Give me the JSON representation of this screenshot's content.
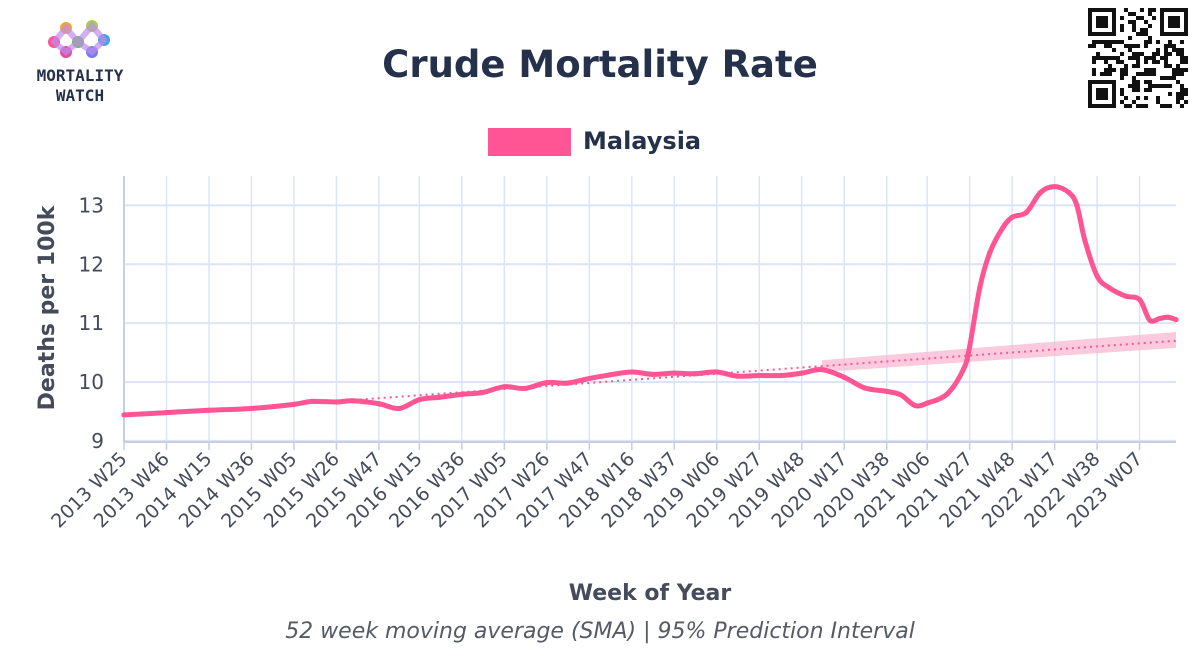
{
  "logo": {
    "line1": "MORTALITY",
    "line2": "WATCH"
  },
  "chart_data": {
    "type": "line",
    "title": "Crude Mortality Rate",
    "subtitle": "52 week moving average (SMA) | 95% Prediction Interval",
    "xlabel": "Week of Year",
    "ylabel": "Deaths per 100k",
    "ylim": [
      8.98,
      13.5
    ],
    "yticks": [
      9,
      10,
      11,
      12,
      13
    ],
    "grid": true,
    "legend_position": "top-center",
    "colors": {
      "series": "#ff5595",
      "band": "#f9b8d0",
      "grid": "#dde4f5",
      "text": "#25304b"
    },
    "xticks": [
      "2013 W25",
      "2013 W46",
      "2014 W15",
      "2014 W36",
      "2015 W05",
      "2015 W26",
      "2015 W47",
      "2016 W15",
      "2016 W36",
      "2017 W05",
      "2017 W26",
      "2017 W47",
      "2018 W16",
      "2018 W37",
      "2019 W06",
      "2019 W27",
      "2019 W48",
      "2020 W17",
      "2020 W38",
      "2021 W06",
      "2021 W27",
      "2021 W48",
      "2022 W17",
      "2022 W38",
      "2023 W07"
    ],
    "series": [
      {
        "name": "Malaysia",
        "points": [
          [
            "2013 W25",
            9.44
          ],
          [
            "2013 W46",
            9.48
          ],
          [
            "2014 W15",
            9.52
          ],
          [
            "2014 W36",
            9.55
          ],
          [
            "2015 W05",
            9.62
          ],
          [
            "2015 W14",
            9.67
          ],
          [
            "2015 W26",
            9.66
          ],
          [
            "2015 W34",
            9.68
          ],
          [
            "2015 W47",
            9.63
          ],
          [
            "2016 W05",
            9.55
          ],
          [
            "2016 W15",
            9.7
          ],
          [
            "2016 W25",
            9.74
          ],
          [
            "2016 W36",
            9.79
          ],
          [
            "2016 W46",
            9.82
          ],
          [
            "2017 W05",
            9.92
          ],
          [
            "2017 W15",
            9.89
          ],
          [
            "2017 W26",
            9.99
          ],
          [
            "2017 W36",
            9.98
          ],
          [
            "2017 W47",
            10.06
          ],
          [
            "2018 W05",
            10.12
          ],
          [
            "2018 W16",
            10.17
          ],
          [
            "2018 W26",
            10.13
          ],
          [
            "2018 W37",
            10.15
          ],
          [
            "2018 W47",
            10.14
          ],
          [
            "2019 W06",
            10.17
          ],
          [
            "2019 W16",
            10.1
          ],
          [
            "2019 W27",
            10.11
          ],
          [
            "2019 W38",
            10.11
          ],
          [
            "2019 W48",
            10.15
          ],
          [
            "2020 W06",
            10.21
          ],
          [
            "2020 W17",
            10.08
          ],
          [
            "2020 W27",
            9.9
          ],
          [
            "2020 W38",
            9.84
          ],
          [
            "2020 W45",
            9.78
          ],
          [
            "2020 W52",
            9.6
          ],
          [
            "2021 W06",
            9.64
          ],
          [
            "2021 W16",
            9.8
          ],
          [
            "2021 W24",
            10.22
          ],
          [
            "2021 W27",
            10.6
          ],
          [
            "2021 W32",
            11.6
          ],
          [
            "2021 W37",
            12.2
          ],
          [
            "2021 W43",
            12.6
          ],
          [
            "2021 W48",
            12.8
          ],
          [
            "2022 W03",
            12.88
          ],
          [
            "2022 W10",
            13.22
          ],
          [
            "2022 W17",
            13.32
          ],
          [
            "2022 W24",
            13.22
          ],
          [
            "2022 W28",
            13.0
          ],
          [
            "2022 W32",
            12.4
          ],
          [
            "2022 W38",
            11.8
          ],
          [
            "2022 W44",
            11.6
          ],
          [
            "2022 W52",
            11.46
          ],
          [
            "2023 W07",
            11.4
          ],
          [
            "2023 W12",
            11.05
          ],
          [
            "2023 W17",
            11.08
          ],
          [
            "2023 W21",
            11.1
          ],
          [
            "2023 W25",
            11.06
          ]
        ]
      },
      {
        "name": "Trend",
        "style": "dotted",
        "points": [
          [
            "2015 W05",
            9.62
          ],
          [
            "2020 W06",
            10.27
          ],
          [
            "2023 W25",
            10.7
          ]
        ]
      },
      {
        "name": "95% Prediction Interval",
        "type": "band",
        "points": [
          [
            "2020 W06",
            10.17,
            10.37
          ],
          [
            "2023 W25",
            10.58,
            10.85
          ]
        ]
      }
    ]
  }
}
